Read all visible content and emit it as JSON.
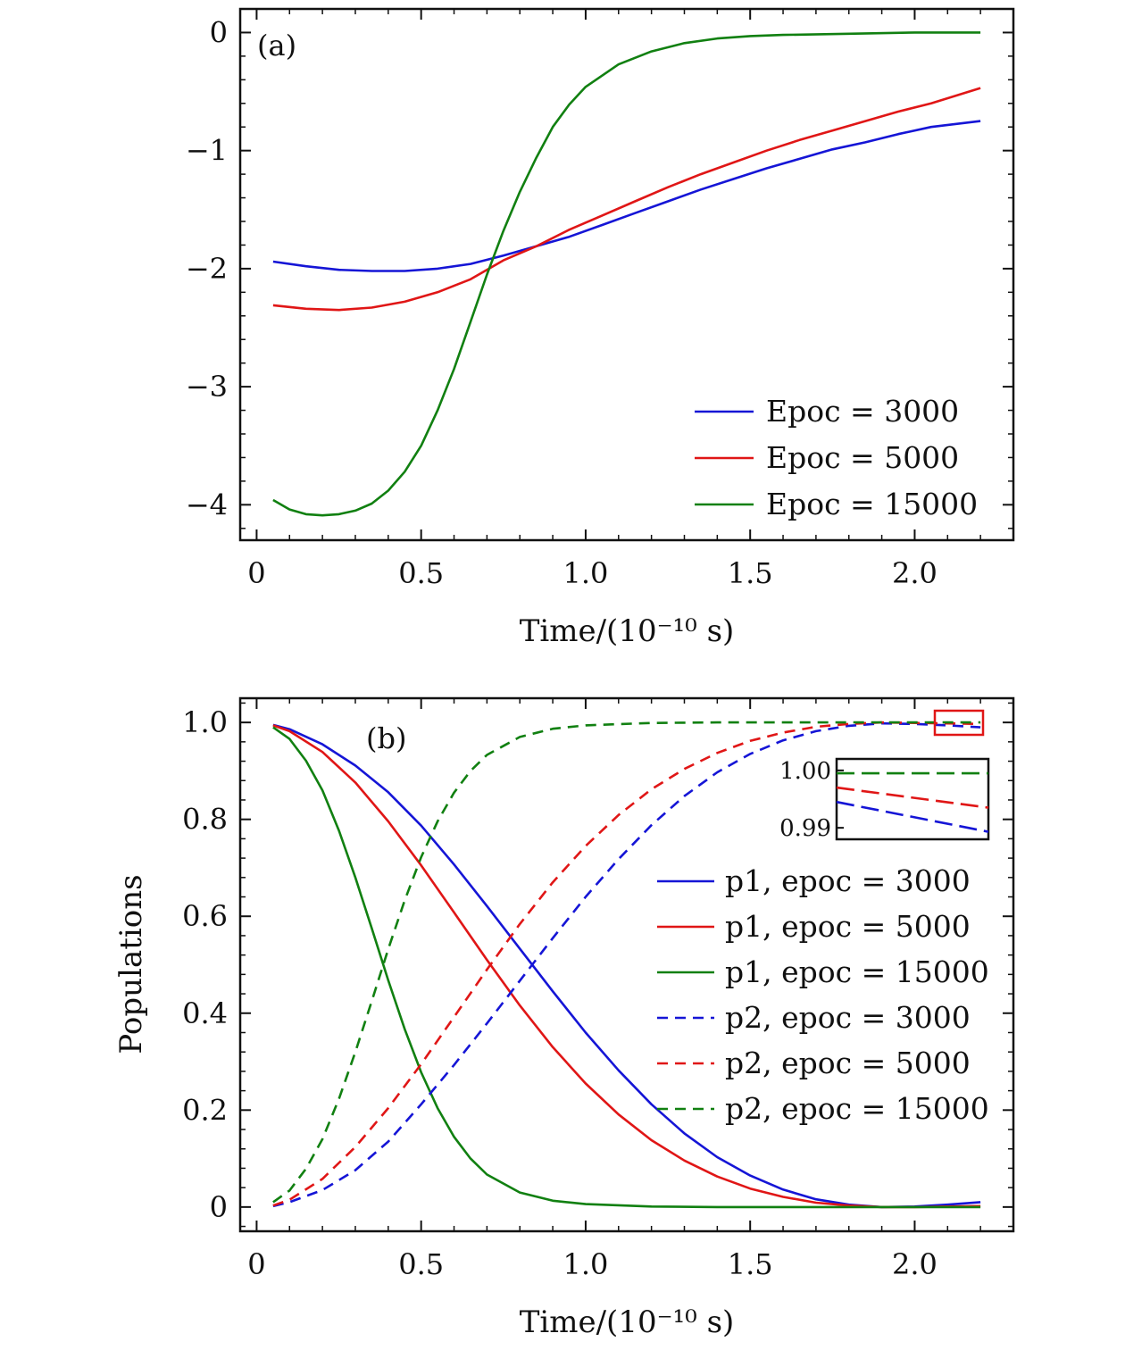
{
  "chart_data": [
    {
      "type": "line",
      "panel": "(a)",
      "xlabel": "Time/(10⁻¹⁰ s)",
      "ylabel": "",
      "xlim": [
        -0.05,
        2.3
      ],
      "ylim": [
        -4.3,
        0.2
      ],
      "x_ticks": [
        0,
        0.5,
        1.0,
        1.5,
        2.0
      ],
      "x_tick_labels": [
        "0",
        "0.5",
        "1.0",
        "1.5",
        "2.0"
      ],
      "y_ticks": [
        0,
        -1,
        -2,
        -3,
        -4
      ],
      "y_tick_labels": [
        "0",
        "−1",
        "−2",
        "−3",
        "−4"
      ],
      "legend_position": "bottom-right",
      "series": [
        {
          "name": "Epoc = 3000",
          "color": "#1515d6",
          "dash": "solid",
          "points": [
            [
              0.05,
              -1.94
            ],
            [
              0.15,
              -1.98
            ],
            [
              0.25,
              -2.01
            ],
            [
              0.35,
              -2.02
            ],
            [
              0.45,
              -2.02
            ],
            [
              0.55,
              -2.0
            ],
            [
              0.65,
              -1.96
            ],
            [
              0.75,
              -1.89
            ],
            [
              0.85,
              -1.81
            ],
            [
              0.95,
              -1.73
            ],
            [
              1.05,
              -1.63
            ],
            [
              1.15,
              -1.53
            ],
            [
              1.25,
              -1.43
            ],
            [
              1.35,
              -1.33
            ],
            [
              1.45,
              -1.24
            ],
            [
              1.55,
              -1.15
            ],
            [
              1.65,
              -1.07
            ],
            [
              1.75,
              -0.99
            ],
            [
              1.85,
              -0.93
            ],
            [
              1.95,
              -0.86
            ],
            [
              2.05,
              -0.8
            ],
            [
              2.2,
              -0.75
            ]
          ]
        },
        {
          "name": "Epoc = 5000",
          "color": "#e01616",
          "dash": "solid",
          "points": [
            [
              0.05,
              -2.31
            ],
            [
              0.15,
              -2.34
            ],
            [
              0.25,
              -2.35
            ],
            [
              0.35,
              -2.33
            ],
            [
              0.45,
              -2.28
            ],
            [
              0.55,
              -2.2
            ],
            [
              0.65,
              -2.09
            ],
            [
              0.75,
              -1.93
            ],
            [
              0.85,
              -1.81
            ],
            [
              0.95,
              -1.67
            ],
            [
              1.05,
              -1.55
            ],
            [
              1.15,
              -1.43
            ],
            [
              1.25,
              -1.31
            ],
            [
              1.35,
              -1.2
            ],
            [
              1.45,
              -1.1
            ],
            [
              1.55,
              -1.0
            ],
            [
              1.65,
              -0.91
            ],
            [
              1.75,
              -0.83
            ],
            [
              1.85,
              -0.75
            ],
            [
              1.95,
              -0.67
            ],
            [
              2.05,
              -0.6
            ],
            [
              2.2,
              -0.47
            ]
          ]
        },
        {
          "name": "Epoc = 15000",
          "color": "#118011",
          "dash": "solid",
          "points": [
            [
              0.05,
              -3.96
            ],
            [
              0.1,
              -4.04
            ],
            [
              0.15,
              -4.08
            ],
            [
              0.2,
              -4.09
            ],
            [
              0.25,
              -4.08
            ],
            [
              0.3,
              -4.05
            ],
            [
              0.35,
              -3.99
            ],
            [
              0.4,
              -3.88
            ],
            [
              0.45,
              -3.72
            ],
            [
              0.5,
              -3.5
            ],
            [
              0.55,
              -3.2
            ],
            [
              0.6,
              -2.85
            ],
            [
              0.65,
              -2.45
            ],
            [
              0.7,
              -2.05
            ],
            [
              0.75,
              -1.68
            ],
            [
              0.8,
              -1.35
            ],
            [
              0.85,
              -1.06
            ],
            [
              0.9,
              -0.8
            ],
            [
              0.95,
              -0.61
            ],
            [
              1.0,
              -0.46
            ],
            [
              1.1,
              -0.27
            ],
            [
              1.2,
              -0.16
            ],
            [
              1.3,
              -0.09
            ],
            [
              1.4,
              -0.05
            ],
            [
              1.5,
              -0.03
            ],
            [
              1.6,
              -0.02
            ],
            [
              1.8,
              -0.01
            ],
            [
              2.0,
              0.0
            ],
            [
              2.2,
              0.0
            ]
          ]
        }
      ]
    },
    {
      "type": "line",
      "panel": "(b)",
      "xlabel": "Time/(10⁻¹⁰ s)",
      "ylabel": "Populations",
      "xlim": [
        -0.05,
        2.3
      ],
      "ylim": [
        -0.05,
        1.05
      ],
      "x_ticks": [
        0,
        0.5,
        1.0,
        1.5,
        2.0
      ],
      "x_tick_labels": [
        "0",
        "0.5",
        "1.0",
        "1.5",
        "2.0"
      ],
      "y_ticks": [
        0,
        0.2,
        0.4,
        0.6,
        0.8,
        1.0
      ],
      "y_tick_labels": [
        "0",
        "0.2",
        "0.4",
        "0.6",
        "0.8",
        "1.0"
      ],
      "legend_position": "right",
      "series": [
        {
          "name": "p1, epoc = 3000",
          "color": "#1515d6",
          "dash": "solid",
          "points": [
            [
              0.05,
              0.995
            ],
            [
              0.1,
              0.986
            ],
            [
              0.2,
              0.955
            ],
            [
              0.3,
              0.911
            ],
            [
              0.4,
              0.856
            ],
            [
              0.5,
              0.787
            ],
            [
              0.6,
              0.707
            ],
            [
              0.7,
              0.621
            ],
            [
              0.8,
              0.533
            ],
            [
              0.9,
              0.445
            ],
            [
              1.0,
              0.36
            ],
            [
              1.1,
              0.282
            ],
            [
              1.2,
              0.212
            ],
            [
              1.3,
              0.152
            ],
            [
              1.4,
              0.103
            ],
            [
              1.5,
              0.065
            ],
            [
              1.6,
              0.036
            ],
            [
              1.7,
              0.016
            ],
            [
              1.8,
              0.005
            ],
            [
              1.9,
              0.0
            ],
            [
              2.0,
              0.001
            ],
            [
              2.1,
              0.005
            ],
            [
              2.2,
              0.01
            ]
          ]
        },
        {
          "name": "p1, epoc = 5000",
          "color": "#e01616",
          "dash": "solid",
          "points": [
            [
              0.05,
              0.994
            ],
            [
              0.1,
              0.982
            ],
            [
              0.2,
              0.939
            ],
            [
              0.3,
              0.876
            ],
            [
              0.4,
              0.796
            ],
            [
              0.5,
              0.705
            ],
            [
              0.6,
              0.608
            ],
            [
              0.7,
              0.51
            ],
            [
              0.8,
              0.416
            ],
            [
              0.9,
              0.33
            ],
            [
              1.0,
              0.255
            ],
            [
              1.1,
              0.191
            ],
            [
              1.2,
              0.138
            ],
            [
              1.3,
              0.096
            ],
            [
              1.4,
              0.063
            ],
            [
              1.5,
              0.038
            ],
            [
              1.6,
              0.021
            ],
            [
              1.7,
              0.009
            ],
            [
              1.8,
              0.003
            ],
            [
              1.9,
              0.0
            ],
            [
              2.0,
              0.0
            ],
            [
              2.1,
              0.001
            ],
            [
              2.2,
              0.002
            ]
          ]
        },
        {
          "name": "p1, epoc = 15000",
          "color": "#118011",
          "dash": "solid",
          "points": [
            [
              0.05,
              0.99
            ],
            [
              0.1,
              0.966
            ],
            [
              0.15,
              0.921
            ],
            [
              0.2,
              0.86
            ],
            [
              0.25,
              0.777
            ],
            [
              0.3,
              0.68
            ],
            [
              0.35,
              0.575
            ],
            [
              0.4,
              0.468
            ],
            [
              0.45,
              0.367
            ],
            [
              0.5,
              0.278
            ],
            [
              0.55,
              0.204
            ],
            [
              0.6,
              0.145
            ],
            [
              0.65,
              0.1
            ],
            [
              0.7,
              0.067
            ],
            [
              0.8,
              0.03
            ],
            [
              0.9,
              0.013
            ],
            [
              1.0,
              0.006
            ],
            [
              1.2,
              0.001
            ],
            [
              1.4,
              0.0
            ],
            [
              1.8,
              0.0
            ],
            [
              2.2,
              0.0
            ]
          ]
        },
        {
          "name": "p2, epoc = 3000",
          "color": "#1515d6",
          "dash": "dashed",
          "points": [
            [
              0.05,
              0.002
            ],
            [
              0.1,
              0.01
            ],
            [
              0.2,
              0.035
            ],
            [
              0.3,
              0.076
            ],
            [
              0.4,
              0.135
            ],
            [
              0.5,
              0.212
            ],
            [
              0.6,
              0.293
            ],
            [
              0.7,
              0.379
            ],
            [
              0.8,
              0.467
            ],
            [
              0.9,
              0.555
            ],
            [
              1.0,
              0.64
            ],
            [
              1.1,
              0.718
            ],
            [
              1.2,
              0.788
            ],
            [
              1.3,
              0.848
            ],
            [
              1.4,
              0.897
            ],
            [
              1.5,
              0.935
            ],
            [
              1.6,
              0.963
            ],
            [
              1.7,
              0.982
            ],
            [
              1.8,
              0.993
            ],
            [
              1.9,
              0.998
            ],
            [
              2.0,
              0.997
            ],
            [
              2.1,
              0.994
            ],
            [
              2.2,
              0.99
            ]
          ]
        },
        {
          "name": "p2, epoc = 5000",
          "color": "#e01616",
          "dash": "dashed",
          "points": [
            [
              0.05,
              0.003
            ],
            [
              0.1,
              0.015
            ],
            [
              0.2,
              0.058
            ],
            [
              0.3,
              0.124
            ],
            [
              0.4,
              0.204
            ],
            [
              0.5,
              0.295
            ],
            [
              0.6,
              0.392
            ],
            [
              0.7,
              0.49
            ],
            [
              0.8,
              0.584
            ],
            [
              0.9,
              0.67
            ],
            [
              1.0,
              0.745
            ],
            [
              1.1,
              0.809
            ],
            [
              1.2,
              0.862
            ],
            [
              1.3,
              0.904
            ],
            [
              1.4,
              0.937
            ],
            [
              1.5,
              0.962
            ],
            [
              1.6,
              0.979
            ],
            [
              1.7,
              0.991
            ],
            [
              1.8,
              0.997
            ],
            [
              1.9,
              1.0
            ],
            [
              2.0,
              0.999
            ],
            [
              2.1,
              0.998
            ],
            [
              2.2,
              0.997
            ]
          ]
        },
        {
          "name": "p2, epoc = 15000",
          "color": "#118011",
          "dash": "dashed",
          "points": [
            [
              0.05,
              0.01
            ],
            [
              0.1,
              0.034
            ],
            [
              0.15,
              0.079
            ],
            [
              0.2,
              0.14
            ],
            [
              0.25,
              0.223
            ],
            [
              0.3,
              0.32
            ],
            [
              0.35,
              0.425
            ],
            [
              0.4,
              0.532
            ],
            [
              0.45,
              0.633
            ],
            [
              0.5,
              0.722
            ],
            [
              0.55,
              0.796
            ],
            [
              0.6,
              0.855
            ],
            [
              0.65,
              0.9
            ],
            [
              0.7,
              0.933
            ],
            [
              0.8,
              0.97
            ],
            [
              0.9,
              0.987
            ],
            [
              1.0,
              0.994
            ],
            [
              1.2,
              0.999
            ],
            [
              1.4,
              1.0
            ],
            [
              1.8,
              1.0
            ],
            [
              2.2,
              1.0
            ]
          ]
        }
      ],
      "inset": {
        "y_ticks": [
          1.0,
          0.99
        ],
        "y_tick_labels": [
          "1.00",
          "0.99"
        ],
        "ylim": [
          0.988,
          1.002
        ],
        "series": [
          {
            "color": "#118011",
            "points": [
              [
                0,
                0.9995
              ],
              [
                1,
                0.9995
              ]
            ]
          },
          {
            "color": "#e01616",
            "points": [
              [
                0,
                0.997
              ],
              [
                1,
                0.9935
              ]
            ]
          },
          {
            "color": "#1515d6",
            "points": [
              [
                0,
                0.9945
              ],
              [
                1,
                0.9893
              ]
            ]
          }
        ]
      }
    }
  ]
}
